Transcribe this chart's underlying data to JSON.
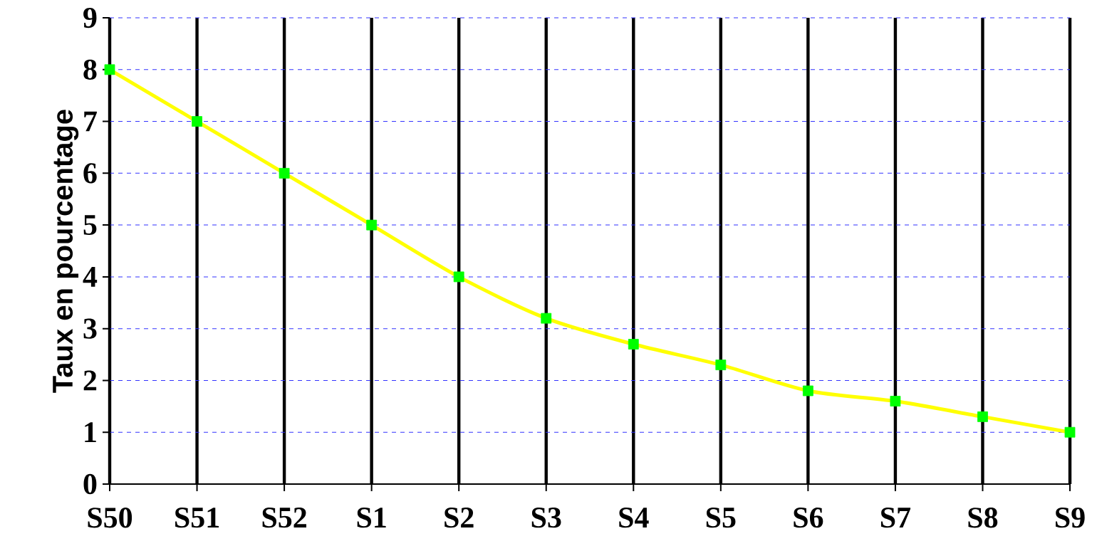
{
  "chart_data": {
    "type": "line",
    "ylabel": "Taux en pourcentage",
    "categories": [
      "S50",
      "S51",
      "S52",
      "S1",
      "S2",
      "S3",
      "S4",
      "S5",
      "S6",
      "S7",
      "S8",
      "S9"
    ],
    "series": [
      {
        "color": "#ffff00",
        "colors": [
          "#00ff00",
          "#00ff00",
          "#00ff00",
          "#00ff00",
          "#00ff00",
          "#00ff00",
          "#00ff00",
          "#00ff00",
          "#00ff00",
          "#00ff00",
          "#00ff00",
          "#00ff00"
        ],
        "values": [
          8,
          7,
          6,
          5,
          4,
          3.2,
          2.7,
          2.3,
          1.8,
          1.6,
          1.3,
          1.0
        ]
      }
    ],
    "ylim": [
      0,
      9
    ],
    "yticks": [
      0,
      1,
      2,
      3,
      4,
      5,
      6,
      7,
      8,
      9
    ],
    "grid": true,
    "marker": "square",
    "line_style": "solid"
  }
}
